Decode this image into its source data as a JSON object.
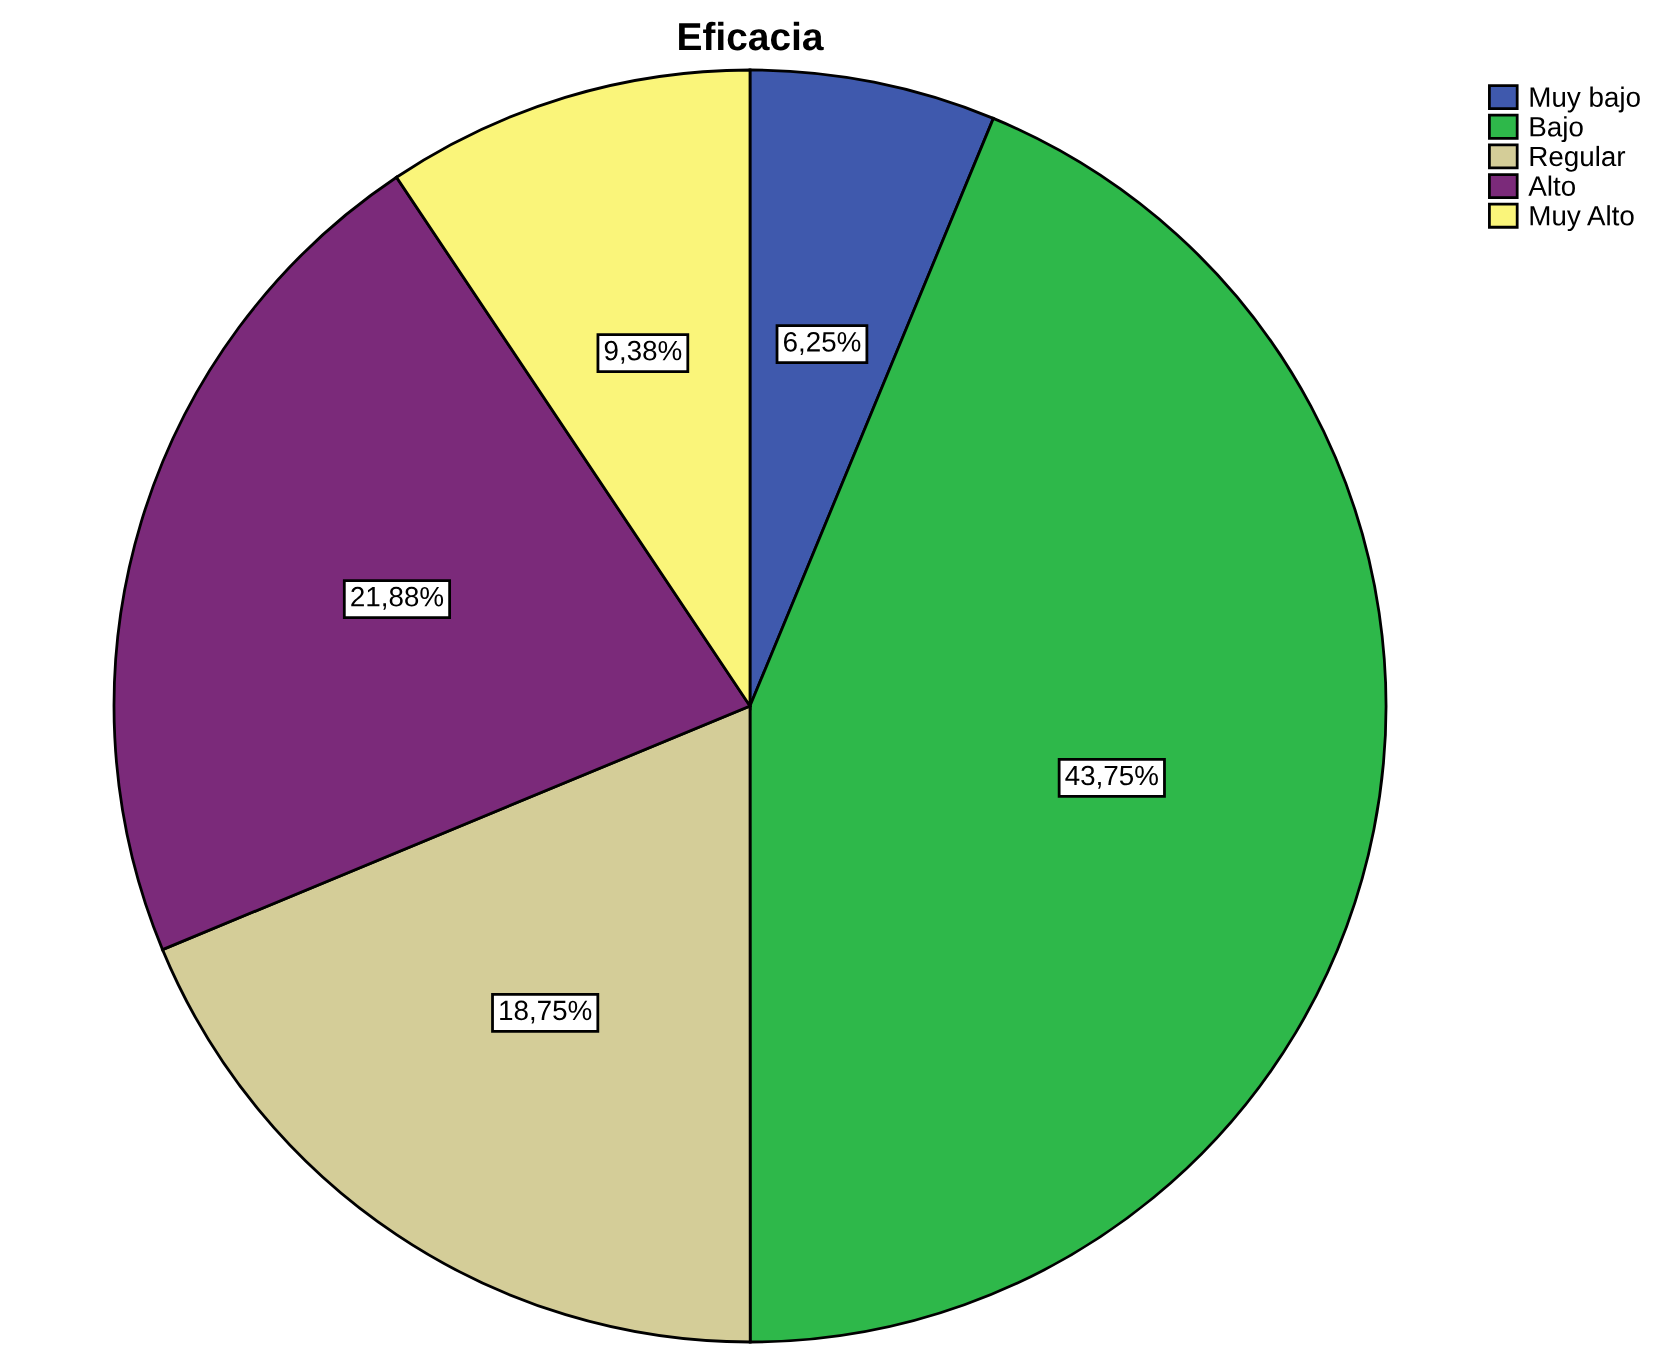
{
  "chart_data": {
    "type": "pie",
    "title": "Eficacia",
    "categories": [
      "Muy bajo",
      "Bajo",
      "Regular",
      "Alto",
      "Muy Alto"
    ],
    "values": [
      6.25,
      43.75,
      18.75,
      21.88,
      9.38
    ],
    "colors": [
      "#3f59ad",
      "#2eb84a",
      "#d4cd98",
      "#7b2a7a",
      "#faf57a"
    ],
    "value_labels": [
      "6,25%",
      "43,75%",
      "18,75%",
      "21,88%",
      "9,38%"
    ],
    "legend": "top right"
  }
}
